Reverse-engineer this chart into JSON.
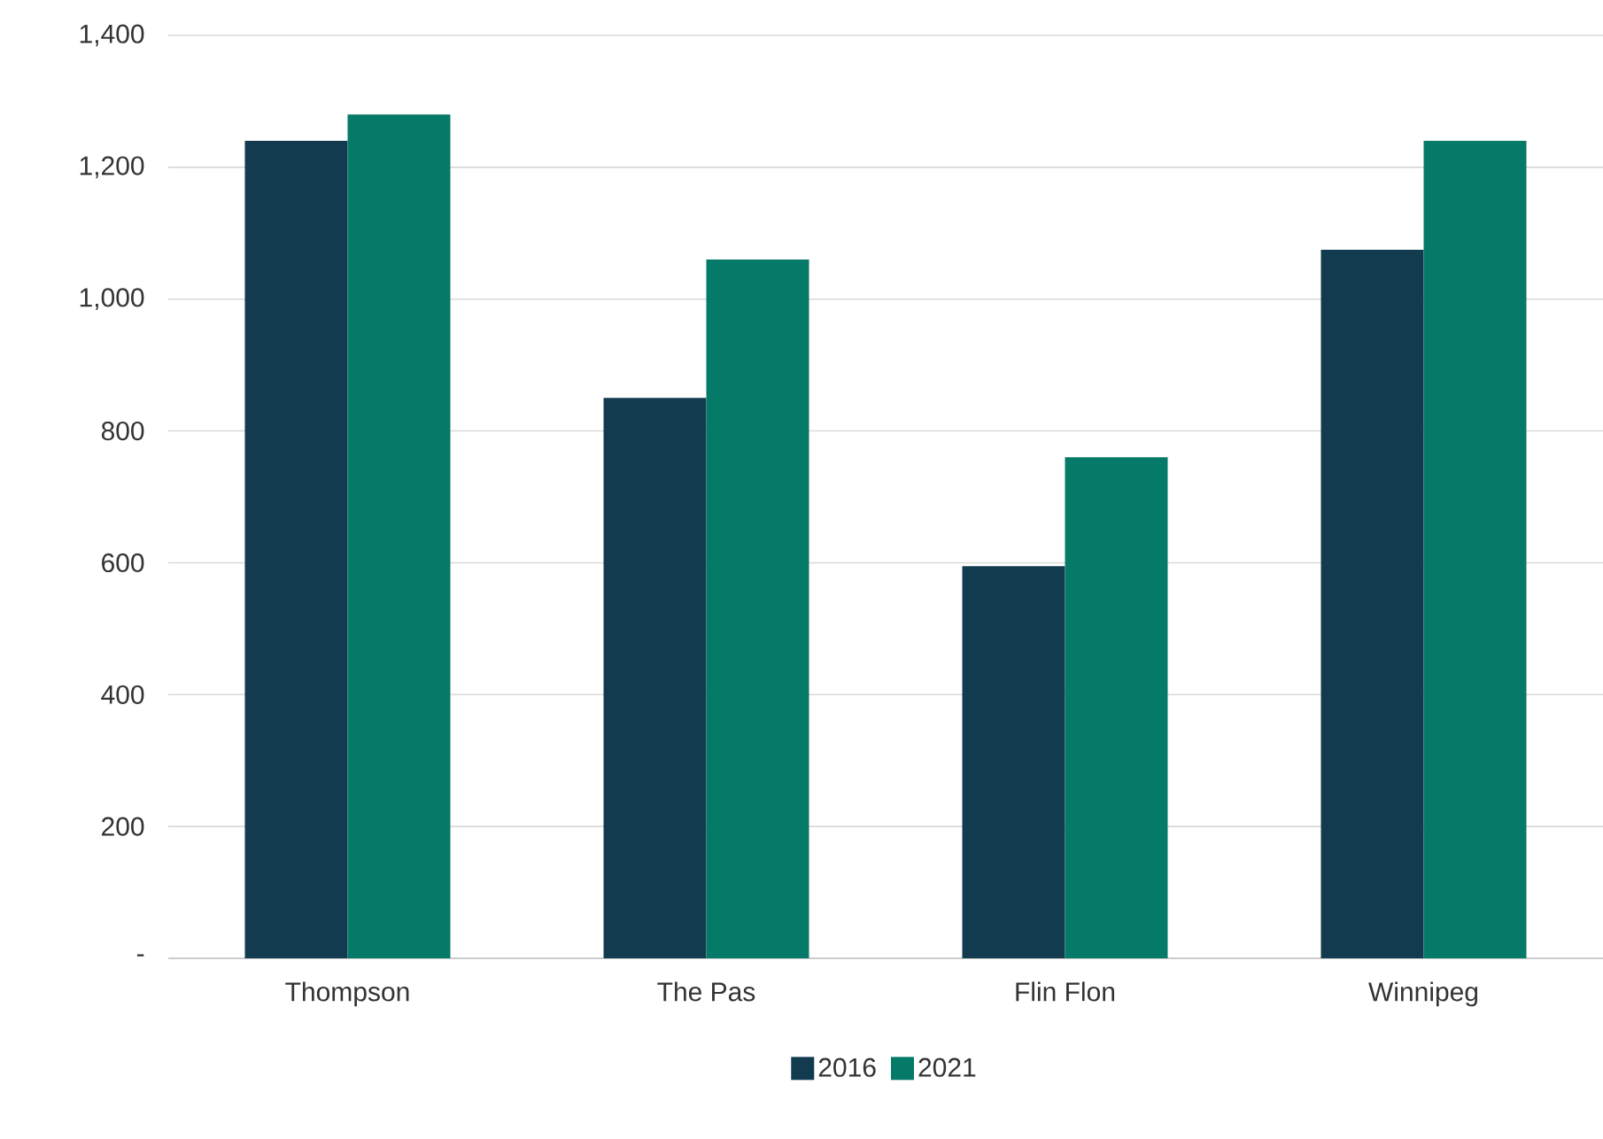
{
  "chart_data": {
    "type": "bar",
    "categories": [
      "Thompson",
      "The Pas",
      "Flin Flon",
      "Winnipeg"
    ],
    "series": [
      {
        "name": "2016",
        "color": "#123b4f",
        "values": [
          1240,
          850,
          595,
          1075
        ]
      },
      {
        "name": "2021",
        "color": "#067a68",
        "values": [
          1280,
          1060,
          760,
          1240
        ]
      }
    ],
    "ylim": [
      0,
      1400
    ],
    "yticks": [
      {
        "value": 0,
        "label": "-"
      },
      {
        "value": 200,
        "label": "200"
      },
      {
        "value": 400,
        "label": "400"
      },
      {
        "value": 600,
        "label": "600"
      },
      {
        "value": 800,
        "label": "800"
      },
      {
        "value": 1000,
        "label": "1,000"
      },
      {
        "value": 1200,
        "label": "1,200"
      },
      {
        "value": 1400,
        "label": "1,400"
      }
    ],
    "grid": "y",
    "legend": "bottom"
  }
}
